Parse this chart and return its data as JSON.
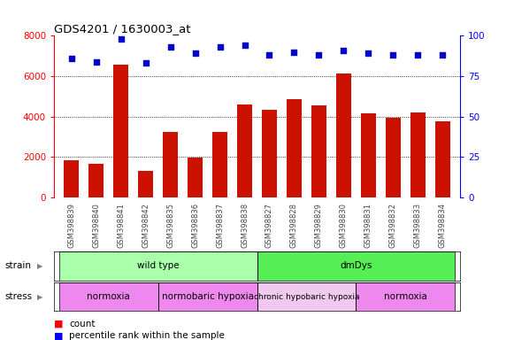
{
  "title": "GDS4201 / 1630003_at",
  "samples": [
    "GSM398839",
    "GSM398840",
    "GSM398841",
    "GSM398842",
    "GSM398835",
    "GSM398836",
    "GSM398837",
    "GSM398838",
    "GSM398827",
    "GSM398828",
    "GSM398829",
    "GSM398830",
    "GSM398831",
    "GSM398832",
    "GSM398833",
    "GSM398834"
  ],
  "counts": [
    1850,
    1650,
    6550,
    1300,
    3250,
    1950,
    3250,
    4600,
    4350,
    4850,
    4550,
    6150,
    4150,
    3950,
    4200,
    3750
  ],
  "percentile_ranks": [
    86,
    84,
    98,
    83,
    93,
    89,
    93,
    94,
    88,
    90,
    88,
    91,
    89,
    88,
    88,
    88
  ],
  "bar_color": "#cc1100",
  "dot_color": "#0000cc",
  "ylim_left": [
    0,
    8000
  ],
  "ylim_right": [
    0,
    100
  ],
  "yticks_left": [
    0,
    2000,
    4000,
    6000,
    8000
  ],
  "yticks_right": [
    0,
    25,
    50,
    75,
    100
  ],
  "strain_labels": [
    {
      "label": "wild type",
      "start": 0,
      "end": 8,
      "color": "#aaffaa"
    },
    {
      "label": "dmDys",
      "start": 8,
      "end": 16,
      "color": "#55ee55"
    }
  ],
  "stress_labels": [
    {
      "label": "normoxia",
      "start": 0,
      "end": 4,
      "color": "#ee88ee"
    },
    {
      "label": "normobaric hypoxia",
      "start": 4,
      "end": 8,
      "color": "#ee88ee"
    },
    {
      "label": "chronic hypobaric hypoxia",
      "start": 8,
      "end": 12,
      "color": "#f0c8f0"
    },
    {
      "label": "normoxia",
      "start": 12,
      "end": 16,
      "color": "#ee88ee"
    }
  ],
  "stress_dividers": [
    4,
    8,
    12
  ],
  "strain_dividers": [
    8
  ],
  "background_color": "#ffffff"
}
